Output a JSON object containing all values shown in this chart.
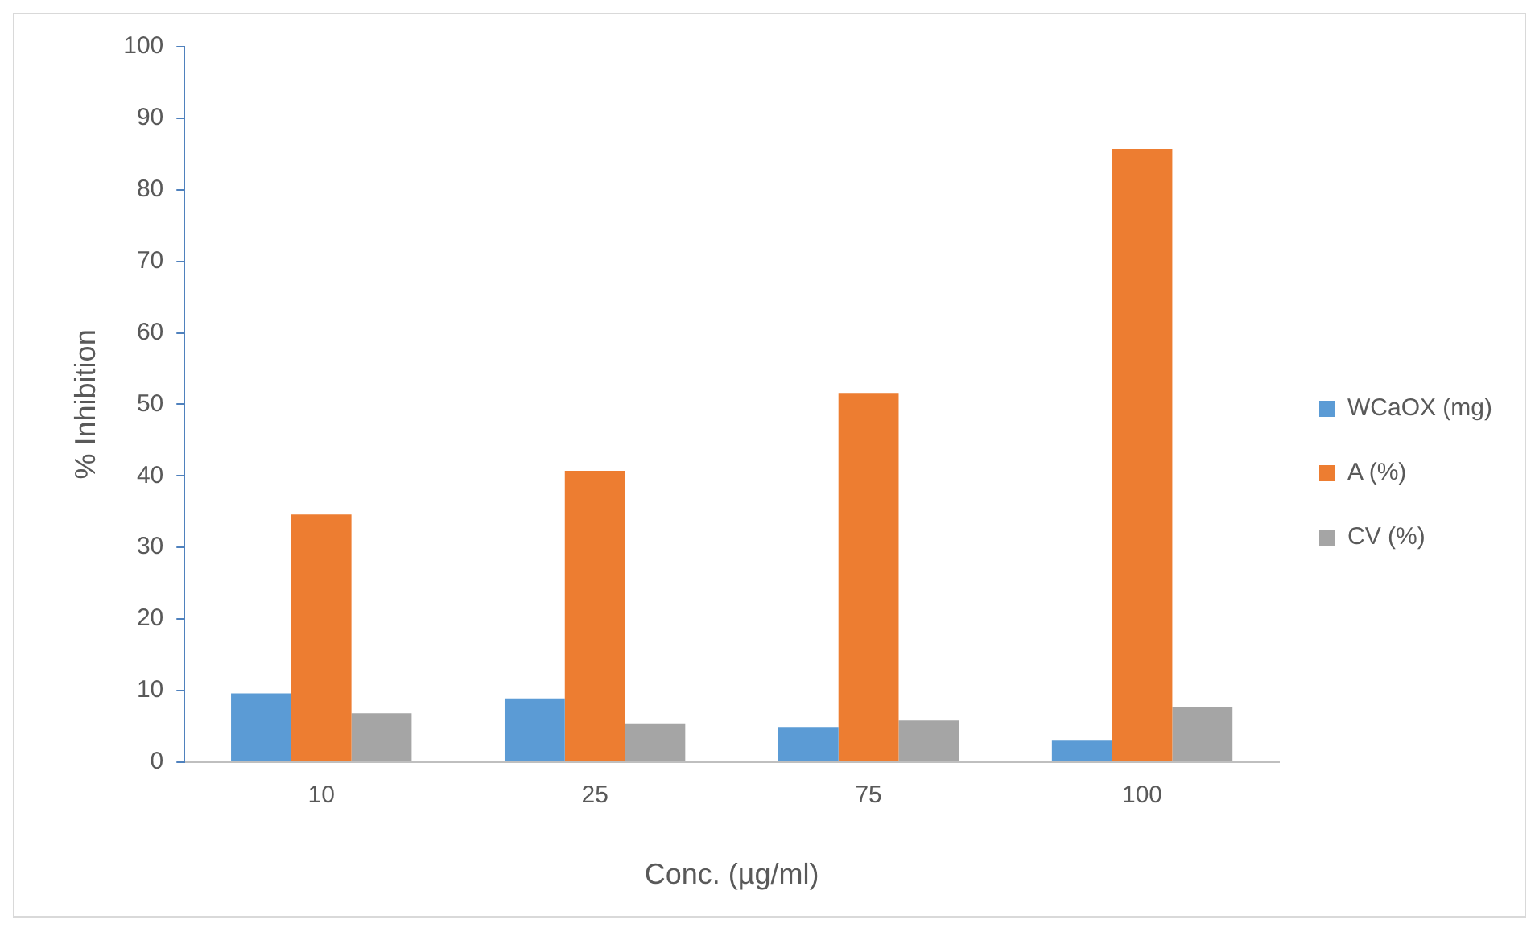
{
  "chart_data": {
    "type": "bar",
    "xlabel": "Conc. (µg/ml)",
    "ylabel": "% Inhibition",
    "categories": [
      "10",
      "25",
      "75",
      "100"
    ],
    "series": [
      {
        "name": "WCaOX (mg)",
        "color": "#5b9bd5",
        "values": [
          9.6,
          8.9,
          4.9,
          3.0
        ]
      },
      {
        "name": "A (%)",
        "color": "#ed7d31",
        "values": [
          34.6,
          40.7,
          51.6,
          85.7
        ]
      },
      {
        "name": "CV (%)",
        "color": "#a5a5a5",
        "values": [
          6.8,
          5.4,
          5.8,
          7.7
        ]
      }
    ],
    "ylim": [
      0,
      100
    ],
    "yticks": [
      0,
      10,
      20,
      30,
      40,
      50,
      60,
      70,
      80,
      90,
      100
    ],
    "grid": false,
    "legend": "right"
  }
}
